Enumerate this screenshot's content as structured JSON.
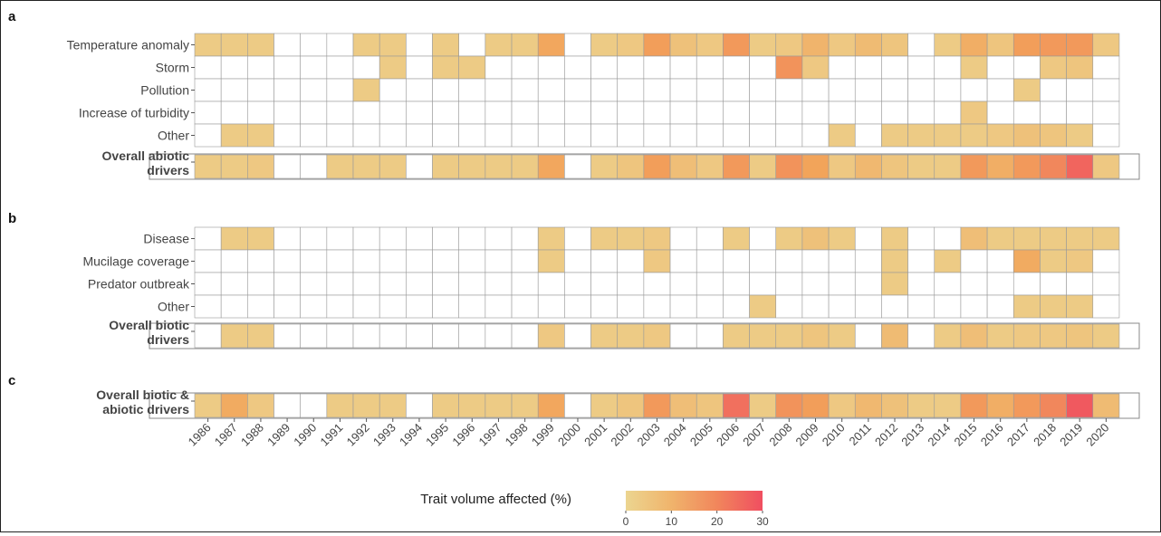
{
  "colors": {
    "low": "#ecd590",
    "mid": "#f2a45a",
    "high": "#f04e60",
    "empty": "#ffffff",
    "grid": "#999999",
    "text": "#444444"
  },
  "chart_data": {
    "type": "heatmap",
    "x": [
      "1986",
      "1987",
      "1988",
      "1989",
      "1990",
      "1991",
      "1992",
      "1993",
      "1994",
      "1995",
      "1996",
      "1997",
      "1998",
      "1999",
      "2000",
      "2001",
      "2002",
      "2003",
      "2004",
      "2005",
      "2006",
      "2007",
      "2008",
      "2009",
      "2010",
      "2011",
      "2012",
      "2013",
      "2014",
      "2015",
      "2016",
      "2017",
      "2018",
      "2019",
      "2020"
    ],
    "panels": [
      {
        "letter": "a",
        "rows": [
          {
            "label": "Temperature anomaly",
            "values": [
              3,
              3,
              3,
              null,
              null,
              null,
              3,
              3,
              null,
              3,
              null,
              3,
              3,
              14,
              null,
              3,
              4,
              16,
              6,
              4,
              17,
              3,
              4,
              10,
              4,
              8,
              5,
              null,
              3,
              12,
              5,
              16,
              17,
              17,
              4
            ]
          },
          {
            "label": "Storm",
            "values": [
              null,
              null,
              null,
              null,
              null,
              null,
              null,
              3,
              null,
              3,
              3,
              null,
              null,
              null,
              null,
              null,
              null,
              null,
              null,
              null,
              null,
              null,
              18,
              4,
              null,
              null,
              null,
              null,
              null,
              3,
              null,
              null,
              4,
              5,
              null
            ]
          },
          {
            "label": "Pollution",
            "values": [
              null,
              null,
              null,
              null,
              null,
              null,
              3,
              null,
              null,
              null,
              null,
              null,
              null,
              null,
              null,
              null,
              null,
              null,
              null,
              null,
              null,
              null,
              null,
              null,
              null,
              null,
              null,
              null,
              null,
              null,
              null,
              3,
              null,
              null,
              null
            ]
          },
          {
            "label": "Increase of turbidity",
            "values": [
              null,
              null,
              null,
              null,
              null,
              null,
              null,
              null,
              null,
              null,
              null,
              null,
              null,
              null,
              null,
              null,
              null,
              null,
              null,
              null,
              null,
              null,
              null,
              null,
              null,
              null,
              null,
              null,
              null,
              4,
              null,
              null,
              null,
              null,
              null
            ]
          },
          {
            "label": "Other",
            "values": [
              null,
              3,
              3,
              null,
              null,
              null,
              null,
              null,
              null,
              null,
              null,
              null,
              null,
              null,
              null,
              null,
              null,
              null,
              null,
              null,
              null,
              null,
              null,
              null,
              3,
              null,
              3,
              3,
              3,
              3,
              4,
              6,
              5,
              3,
              null
            ]
          }
        ],
        "overall": {
          "label": "Overall abiotic drivers",
          "values": [
            3,
            3,
            4,
            null,
            null,
            3,
            3,
            3,
            null,
            3,
            3,
            3,
            3,
            14,
            null,
            3,
            5,
            16,
            7,
            4,
            17,
            3,
            18,
            15,
            4,
            9,
            5,
            3,
            3,
            17,
            12,
            17,
            20,
            26,
            4
          ]
        }
      },
      {
        "letter": "b",
        "rows": [
          {
            "label": "Disease",
            "values": [
              null,
              3,
              3,
              null,
              null,
              null,
              null,
              null,
              null,
              null,
              null,
              null,
              null,
              3,
              null,
              3,
              3,
              4,
              null,
              null,
              3,
              null,
              3,
              6,
              3,
              null,
              3,
              null,
              null,
              7,
              3,
              3,
              3,
              3,
              3
            ]
          },
          {
            "label": "Mucilage coverage",
            "values": [
              null,
              null,
              null,
              null,
              null,
              null,
              null,
              null,
              null,
              null,
              null,
              null,
              null,
              3,
              null,
              null,
              null,
              4,
              null,
              null,
              null,
              null,
              null,
              null,
              null,
              null,
              3,
              null,
              3,
              null,
              null,
              13,
              3,
              4,
              null
            ]
          },
          {
            "label": "Predator outbreak",
            "values": [
              null,
              null,
              null,
              null,
              null,
              null,
              null,
              null,
              null,
              null,
              null,
              null,
              null,
              null,
              null,
              null,
              null,
              null,
              null,
              null,
              null,
              null,
              null,
              null,
              null,
              null,
              3,
              null,
              null,
              null,
              null,
              null,
              null,
              null,
              null
            ]
          },
          {
            "label": "Other",
            "values": [
              null,
              null,
              null,
              null,
              null,
              null,
              null,
              null,
              null,
              null,
              null,
              null,
              null,
              null,
              null,
              null,
              null,
              null,
              null,
              null,
              null,
              3,
              null,
              null,
              null,
              null,
              null,
              null,
              null,
              null,
              null,
              3,
              3,
              3,
              null
            ]
          }
        ],
        "overall": {
          "label": "Overall biotic drivers",
          "values": [
            null,
            3,
            3,
            null,
            null,
            null,
            null,
            null,
            null,
            null,
            null,
            null,
            null,
            4,
            null,
            3,
            3,
            4,
            null,
            null,
            3,
            3,
            3,
            5,
            3,
            null,
            8,
            null,
            3,
            7,
            3,
            4,
            4,
            5,
            3
          ]
        }
      },
      {
        "letter": "c",
        "rows": [],
        "overall": {
          "label": "Overall biotic & abiotic drivers",
          "values": [
            3,
            13,
            4,
            null,
            null,
            3,
            3,
            3,
            null,
            3,
            3,
            3,
            3,
            14,
            null,
            3,
            5,
            17,
            7,
            5,
            24,
            3,
            18,
            16,
            4,
            9,
            6,
            3,
            3,
            17,
            12,
            17,
            20,
            28,
            8
          ]
        }
      }
    ],
    "legend": {
      "title": "Trait volume affected (%)",
      "ticks": [
        0,
        10,
        20,
        30
      ],
      "range": [
        0,
        30
      ]
    }
  }
}
